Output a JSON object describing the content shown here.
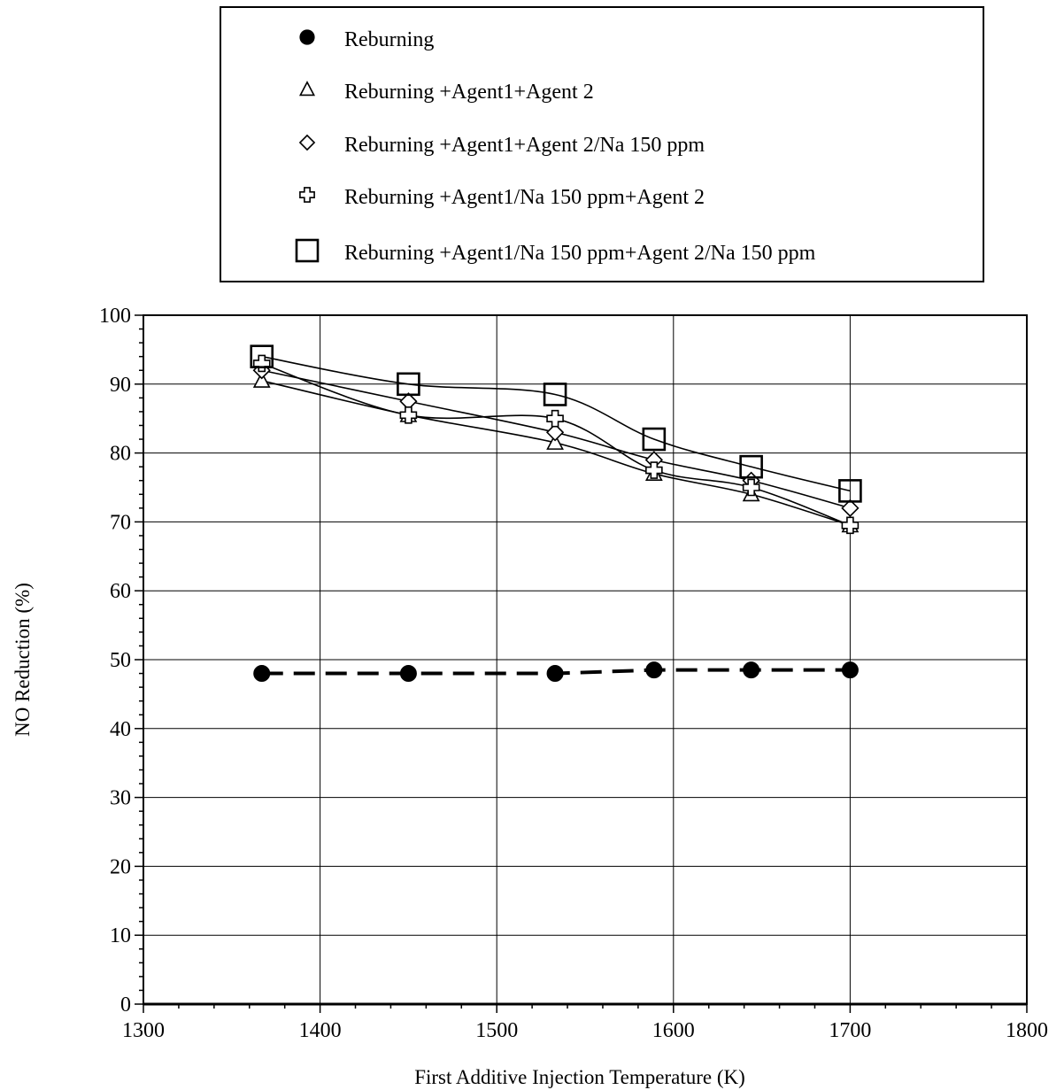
{
  "chart_data": {
    "type": "line",
    "title": "",
    "xlabel": "First Additive Injection Temperature (K)",
    "ylabel": "NO Reduction (%)",
    "xlim": [
      1300,
      1800
    ],
    "ylim": [
      0,
      100
    ],
    "x_ticks": [
      "1300",
      "1400",
      "1500",
      "1600",
      "1700",
      "1800"
    ],
    "y_ticks": [
      "0",
      "10",
      "20",
      "30",
      "40",
      "50",
      "60",
      "70",
      "80",
      "90",
      "100"
    ],
    "grid": true,
    "legend_position": "top",
    "series": [
      {
        "name": "Reburning",
        "marker": "filled-circle",
        "line": "dashed",
        "x": [
          1367,
          1450,
          1533,
          1589,
          1644,
          1700
        ],
        "y": [
          48.0,
          48.0,
          48.0,
          48.5,
          48.5,
          48.5
        ]
      },
      {
        "name": "Reburning +Agent1+Agent 2",
        "marker": "open-triangle",
        "line": "solid",
        "x": [
          1367,
          1450,
          1533,
          1589,
          1644,
          1700
        ],
        "y": [
          90.5,
          85.5,
          81.5,
          77.0,
          74.0,
          69.5
        ]
      },
      {
        "name": "Reburning +Agent1+Agent 2/Na 150 ppm",
        "marker": "open-diamond",
        "line": "solid",
        "x": [
          1367,
          1450,
          1533,
          1589,
          1644,
          1700
        ],
        "y": [
          92.0,
          87.5,
          83.0,
          79.0,
          76.0,
          72.0
        ]
      },
      {
        "name": "Reburning +Agent1/Na 150 ppm+Agent 2",
        "marker": "open-cross",
        "line": "solid",
        "x": [
          1367,
          1450,
          1533,
          1589,
          1644,
          1700
        ],
        "y": [
          93.0,
          85.5,
          85.0,
          77.5,
          75.0,
          69.5
        ]
      },
      {
        "name": "Reburning +Agent1/Na 150 ppm+Agent 2/Na 150 ppm",
        "marker": "open-square",
        "line": "solid",
        "x": [
          1367,
          1450,
          1533,
          1589,
          1644,
          1700
        ],
        "y": [
          94.0,
          90.0,
          88.5,
          82.0,
          78.0,
          74.5
        ]
      }
    ]
  }
}
